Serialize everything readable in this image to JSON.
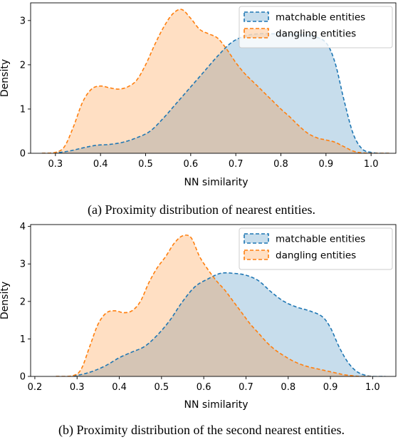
{
  "chart_data": [
    {
      "type": "area",
      "subtype": "kde",
      "caption": "(a) Proximity distribution of nearest entities.",
      "xlabel": "NN similarity",
      "ylabel": "Density",
      "xlim": [
        0.245,
        1.055
      ],
      "ylim": [
        0,
        3.4
      ],
      "xticks": [
        0.3,
        0.4,
        0.5,
        0.6,
        0.7,
        0.8,
        0.9,
        1.0
      ],
      "xtick_labels": [
        "0.3",
        "0.4",
        "0.5",
        "0.6",
        "0.7",
        "0.8",
        "0.9",
        "1.0"
      ],
      "yticks": [
        0,
        1,
        2,
        3
      ],
      "ytick_labels": [
        "0",
        "1",
        "2",
        "3"
      ],
      "legend_position": "top-right",
      "grid": false,
      "series": [
        {
          "name": "matchable entities",
          "color": "#1f77b4",
          "x": [
            0.27,
            0.3,
            0.33,
            0.36,
            0.39,
            0.42,
            0.45,
            0.48,
            0.51,
            0.54,
            0.57,
            0.6,
            0.63,
            0.66,
            0.69,
            0.72,
            0.75,
            0.78,
            0.81,
            0.84,
            0.87,
            0.9,
            0.92,
            0.94,
            0.96,
            0.98,
            1.0,
            1.02,
            1.04
          ],
          "y": [
            0.0,
            0.01,
            0.05,
            0.12,
            0.18,
            0.2,
            0.25,
            0.35,
            0.5,
            0.8,
            1.15,
            1.5,
            1.85,
            2.2,
            2.5,
            2.65,
            2.7,
            2.7,
            2.7,
            2.68,
            2.65,
            2.5,
            2.05,
            1.2,
            0.45,
            0.1,
            0.02,
            0.0,
            0.0
          ]
        },
        {
          "name": "dangling entities",
          "color": "#ff7f0e",
          "x": [
            0.27,
            0.3,
            0.32,
            0.34,
            0.36,
            0.38,
            0.4,
            0.42,
            0.44,
            0.46,
            0.48,
            0.5,
            0.52,
            0.54,
            0.56,
            0.58,
            0.6,
            0.62,
            0.64,
            0.66,
            0.68,
            0.7,
            0.72,
            0.74,
            0.76,
            0.78,
            0.8,
            0.82,
            0.84,
            0.86,
            0.88,
            0.9,
            0.92,
            0.94,
            0.96,
            0.98,
            1.0,
            1.04
          ],
          "y": [
            0.0,
            0.02,
            0.15,
            0.6,
            1.15,
            1.45,
            1.52,
            1.48,
            1.45,
            1.5,
            1.65,
            2.0,
            2.45,
            2.85,
            3.15,
            3.25,
            3.05,
            2.8,
            2.7,
            2.6,
            2.35,
            2.05,
            1.8,
            1.6,
            1.4,
            1.2,
            1.0,
            0.82,
            0.62,
            0.45,
            0.35,
            0.3,
            0.25,
            0.15,
            0.05,
            0.01,
            0.0,
            0.0
          ]
        }
      ]
    },
    {
      "type": "area",
      "subtype": "kde",
      "caption": "(b) Proximity distribution of the second nearest entities.",
      "xlabel": "NN similarity",
      "ylabel": "Density",
      "xlim": [
        0.19,
        1.055
      ],
      "ylim": [
        0,
        4.05
      ],
      "xticks": [
        0.2,
        0.3,
        0.4,
        0.5,
        0.6,
        0.7,
        0.8,
        0.9,
        1.0
      ],
      "xtick_labels": [
        "0.2",
        "0.3",
        "0.4",
        "0.5",
        "0.6",
        "0.7",
        "0.8",
        "0.9",
        "1.0"
      ],
      "yticks": [
        0,
        1,
        2,
        3,
        4
      ],
      "ytick_labels": [
        "0",
        "1",
        "2",
        "3",
        "4"
      ],
      "legend_position": "top-right",
      "grid": false,
      "series": [
        {
          "name": "matchable entities",
          "color": "#1f77b4",
          "x": [
            0.25,
            0.28,
            0.31,
            0.34,
            0.37,
            0.4,
            0.43,
            0.46,
            0.49,
            0.52,
            0.55,
            0.58,
            0.61,
            0.64,
            0.67,
            0.7,
            0.73,
            0.76,
            0.79,
            0.82,
            0.85,
            0.88,
            0.9,
            0.92,
            0.94,
            0.96,
            0.98,
            1.0,
            1.03
          ],
          "y": [
            0.0,
            0.0,
            0.05,
            0.15,
            0.3,
            0.5,
            0.65,
            0.8,
            1.1,
            1.5,
            2.0,
            2.4,
            2.6,
            2.75,
            2.75,
            2.7,
            2.55,
            2.25,
            2.0,
            1.85,
            1.75,
            1.6,
            1.3,
            0.8,
            0.4,
            0.15,
            0.04,
            0.0,
            0.0
          ]
        },
        {
          "name": "dangling entities",
          "color": "#ff7f0e",
          "x": [
            0.25,
            0.29,
            0.31,
            0.33,
            0.35,
            0.37,
            0.39,
            0.41,
            0.43,
            0.45,
            0.47,
            0.49,
            0.51,
            0.53,
            0.55,
            0.57,
            0.59,
            0.61,
            0.63,
            0.65,
            0.67,
            0.69,
            0.71,
            0.73,
            0.75,
            0.77,
            0.79,
            0.81,
            0.83,
            0.85,
            0.87,
            0.89,
            0.91,
            0.93,
            0.95,
            0.97,
            1.0
          ],
          "y": [
            0.0,
            0.02,
            0.2,
            0.8,
            1.4,
            1.7,
            1.75,
            1.7,
            1.75,
            2.0,
            2.5,
            2.9,
            3.2,
            3.55,
            3.75,
            3.7,
            3.2,
            2.85,
            2.55,
            2.3,
            2.0,
            1.7,
            1.4,
            1.15,
            0.9,
            0.7,
            0.55,
            0.42,
            0.32,
            0.25,
            0.2,
            0.15,
            0.1,
            0.05,
            0.02,
            0.0,
            0.0
          ]
        }
      ]
    }
  ]
}
